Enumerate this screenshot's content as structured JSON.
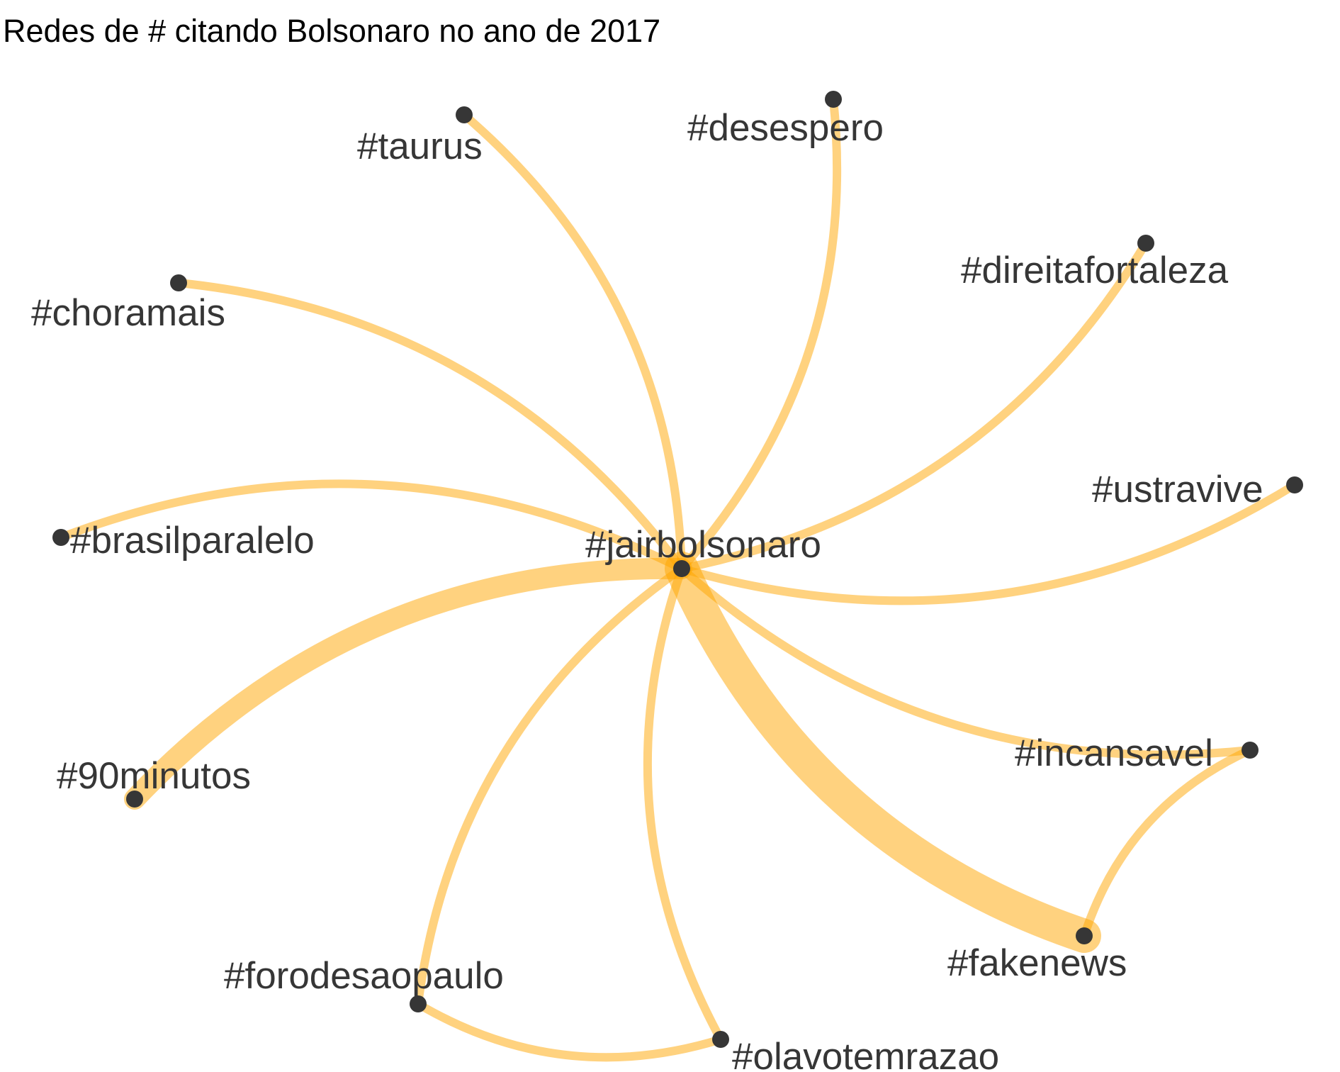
{
  "title": "Redes de # citando Bolsonaro no ano de 2017",
  "colors": {
    "edge": "#FFA500",
    "node": "#363636",
    "label": "#363636",
    "title": "#000000"
  },
  "nodes": [
    {
      "id": "jairbolsonaro",
      "label": "#jairbolsonaro"
    },
    {
      "id": "taurus",
      "label": "#taurus"
    },
    {
      "id": "desespero",
      "label": "#desespero"
    },
    {
      "id": "direitafortaleza",
      "label": "#direitafortaleza"
    },
    {
      "id": "ustravive",
      "label": "#ustravive"
    },
    {
      "id": "choramais",
      "label": "#choramais"
    },
    {
      "id": "brasilparalelo",
      "label": "#brasilparalelo"
    },
    {
      "id": "90minutos",
      "label": "#90minutos"
    },
    {
      "id": "incansavel",
      "label": "#incansavel"
    },
    {
      "id": "fakenews",
      "label": "#fakenews"
    },
    {
      "id": "forodesaopaulo",
      "label": "#forodesaopaulo"
    },
    {
      "id": "olavotemrazao",
      "label": "#olavotemrazao"
    }
  ],
  "edges": [
    {
      "source": "jairbolsonaro",
      "target": "taurus",
      "weight": 1
    },
    {
      "source": "jairbolsonaro",
      "target": "desespero",
      "weight": 1
    },
    {
      "source": "jairbolsonaro",
      "target": "direitafortaleza",
      "weight": 1
    },
    {
      "source": "jairbolsonaro",
      "target": "ustravive",
      "weight": 1
    },
    {
      "source": "jairbolsonaro",
      "target": "choramais",
      "weight": 1
    },
    {
      "source": "jairbolsonaro",
      "target": "brasilparalelo",
      "weight": 1
    },
    {
      "source": "jairbolsonaro",
      "target": "90minutos",
      "weight": 3
    },
    {
      "source": "jairbolsonaro",
      "target": "incansavel",
      "weight": 1
    },
    {
      "source": "jairbolsonaro",
      "target": "fakenews",
      "weight": 5
    },
    {
      "source": "jairbolsonaro",
      "target": "forodesaopaulo",
      "weight": 1
    },
    {
      "source": "jairbolsonaro",
      "target": "olavotemrazao",
      "weight": 1
    },
    {
      "source": "incansavel",
      "target": "fakenews",
      "weight": 1
    },
    {
      "source": "forodesaopaulo",
      "target": "olavotemrazao",
      "weight": 1
    }
  ]
}
